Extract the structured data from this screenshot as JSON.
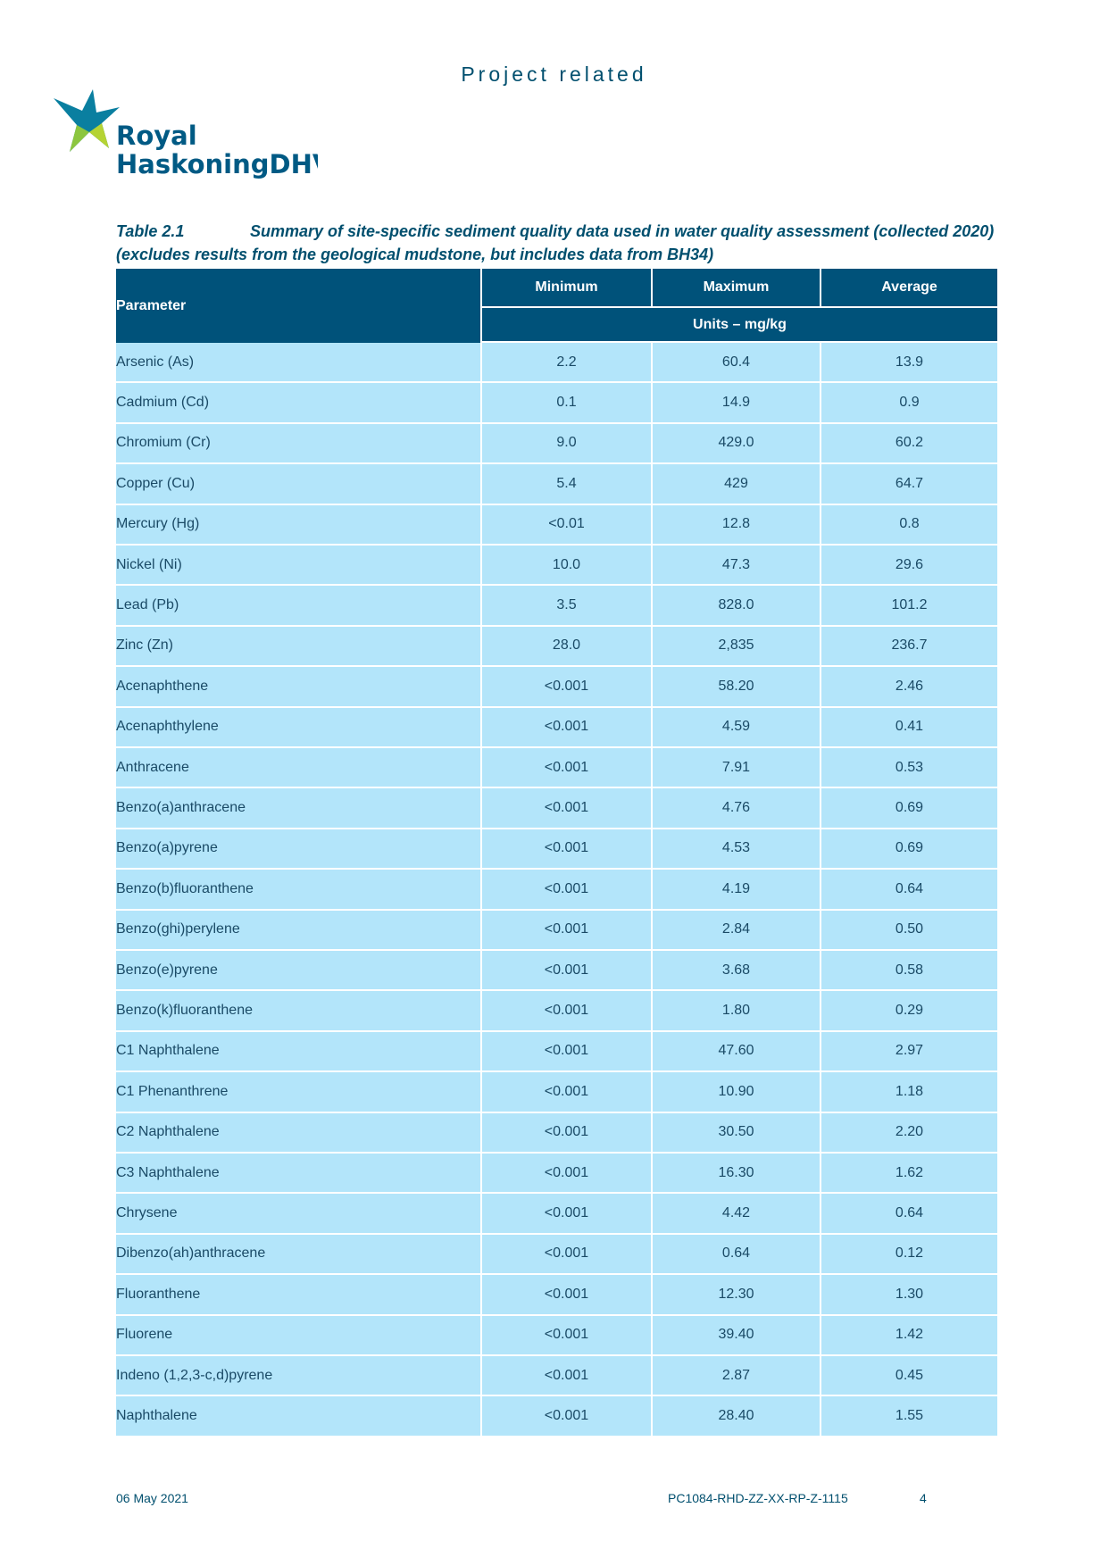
{
  "header": {
    "title": "Project related"
  },
  "logo": {
    "line1": "Royal",
    "line2": "HaskoningDHV"
  },
  "caption": {
    "label": "Table 2.1",
    "text": "Summary of site-specific sediment quality data used in water quality assessment (collected 2020) (excludes results from the geological mudstone, but includes data from BH34)"
  },
  "table": {
    "header": {
      "parameter": "Parameter",
      "columns": [
        "Minimum",
        "Maximum",
        "Average"
      ],
      "units": "Units – mg/kg"
    },
    "rows": [
      [
        "Arsenic (As)",
        "2.2",
        "60.4",
        "13.9"
      ],
      [
        "Cadmium (Cd)",
        "0.1",
        "14.9",
        "0.9"
      ],
      [
        "Chromium (Cr)",
        "9.0",
        "429.0",
        "60.2"
      ],
      [
        "Copper (Cu)",
        "5.4",
        "429",
        "64.7"
      ],
      [
        "Mercury (Hg)",
        "<0.01",
        "12.8",
        "0.8"
      ],
      [
        "Nickel (Ni)",
        "10.0",
        "47.3",
        "29.6"
      ],
      [
        "Lead (Pb)",
        "3.5",
        "828.0",
        "101.2"
      ],
      [
        "Zinc (Zn)",
        "28.0",
        "2,835",
        "236.7"
      ],
      [
        "Acenaphthene",
        "<0.001",
        "58.20",
        "2.46"
      ],
      [
        "Acenaphthylene",
        "<0.001",
        "4.59",
        "0.41"
      ],
      [
        "Anthracene",
        "<0.001",
        "7.91",
        "0.53"
      ],
      [
        "Benzo(a)anthracene",
        "<0.001",
        "4.76",
        "0.69"
      ],
      [
        "Benzo(a)pyrene",
        "<0.001",
        "4.53",
        "0.69"
      ],
      [
        "Benzo(b)fluoranthene",
        "<0.001",
        "4.19",
        "0.64"
      ],
      [
        "Benzo(ghi)perylene",
        "<0.001",
        "2.84",
        "0.50"
      ],
      [
        "Benzo(e)pyrene",
        "<0.001",
        "3.68",
        "0.58"
      ],
      [
        "Benzo(k)fluoranthene",
        "<0.001",
        "1.80",
        "0.29"
      ],
      [
        "C1 Naphthalene",
        "<0.001",
        "47.60",
        "2.97"
      ],
      [
        "C1 Phenanthrene",
        "<0.001",
        "10.90",
        "1.18"
      ],
      [
        "C2 Naphthalene",
        "<0.001",
        "30.50",
        "2.20"
      ],
      [
        "C3 Naphthalene",
        "<0.001",
        "16.30",
        "1.62"
      ],
      [
        "Chrysene",
        "<0.001",
        "4.42",
        "0.64"
      ],
      [
        "Dibenzo(ah)anthracene",
        "<0.001",
        "0.64",
        "0.12"
      ],
      [
        "Fluoranthene",
        "<0.001",
        "12.30",
        "1.30"
      ],
      [
        "Fluorene",
        "<0.001",
        "39.40",
        "1.42"
      ],
      [
        "Indeno (1,2,3-c,d)pyrene",
        "<0.001",
        "2.87",
        "0.45"
      ],
      [
        "Naphthalene",
        "<0.001",
        "28.40",
        "1.55"
      ]
    ]
  },
  "footer": {
    "date": "06 May 2021",
    "reference": "PC1084-RHD-ZZ-XX-RP-Z-1115",
    "page": "4"
  }
}
